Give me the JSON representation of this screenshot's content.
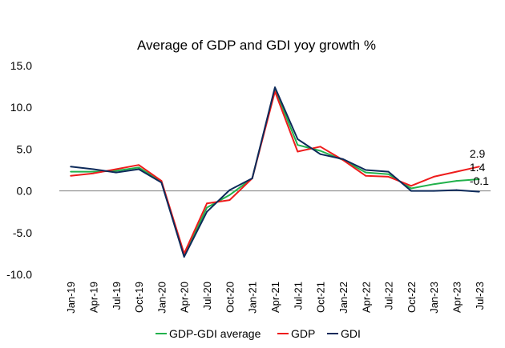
{
  "chart_data": {
    "type": "line",
    "title": "Average of GDP and GDI yoy growth %",
    "xlabel": "",
    "ylabel": "",
    "ylim": [
      -10,
      15
    ],
    "yticks": [
      "15.0",
      "10.0",
      "5.0",
      "0.0",
      "-5.0",
      "-10.0"
    ],
    "ytick_values": [
      15,
      10,
      5,
      0,
      -5,
      -10
    ],
    "grid": false,
    "legend_position": "bottom",
    "categories": [
      "Jan-19",
      "Apr-19",
      "Jul-19",
      "Oct-19",
      "Jan-20",
      "Apr-20",
      "Jul-20",
      "Oct-20",
      "Jan-21",
      "Apr-21",
      "Jul-21",
      "Oct-21",
      "Jan-22",
      "Apr-22",
      "Jul-22",
      "Oct-22",
      "Jan-23",
      "Apr-23",
      "Jul-23"
    ],
    "series": [
      {
        "name": "GDP-GDI average",
        "color": "#22b14c",
        "values": [
          2.3,
          2.3,
          2.4,
          2.8,
          1.1,
          -7.8,
          -2.0,
          -0.5,
          1.5,
          12.2,
          5.5,
          4.8,
          3.7,
          2.2,
          2.0,
          0.3,
          0.8,
          1.2,
          1.4
        ]
      },
      {
        "name": "GDP",
        "color": "#ee1c1c",
        "values": [
          1.8,
          2.1,
          2.6,
          3.1,
          1.2,
          -7.5,
          -1.5,
          -1.1,
          1.5,
          11.9,
          4.7,
          5.3,
          3.7,
          1.8,
          1.7,
          0.6,
          1.7,
          2.3,
          2.9
        ]
      },
      {
        "name": "GDI",
        "color": "#0d2a5a",
        "values": [
          2.9,
          2.6,
          2.2,
          2.6,
          1.0,
          -7.9,
          -2.5,
          0.1,
          1.5,
          12.4,
          6.2,
          4.4,
          3.8,
          2.5,
          2.3,
          0.0,
          0.0,
          0.1,
          -0.1
        ]
      }
    ],
    "end_labels": [
      "2.9",
      "1.4",
      "-0.1"
    ]
  }
}
